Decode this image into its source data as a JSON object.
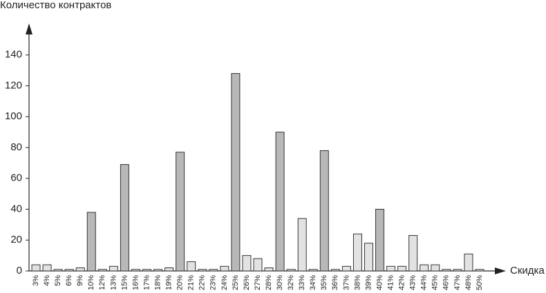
{
  "chart_data": {
    "type": "bar",
    "y_label": "Количество контрактов",
    "x_label": "Скидка",
    "categories": [
      "3%",
      "4%",
      "5%",
      "6%",
      "9%",
      "10%",
      "12%",
      "13%",
      "15%",
      "16%",
      "17%",
      "18%",
      "19%",
      "20%",
      "21%",
      "22%",
      "23%",
      "24%",
      "25%",
      "26%",
      "27%",
      "28%",
      "30%",
      "32%",
      "33%",
      "34%",
      "35%",
      "36%",
      "37%",
      "38%",
      "39%",
      "40%",
      "41%",
      "42%",
      "43%",
      "44%",
      "45%",
      "46%",
      "47%",
      "48%",
      "50%"
    ],
    "values": [
      4,
      4,
      1,
      1,
      2,
      38,
      1,
      3,
      69,
      1,
      1,
      1,
      2,
      77,
      6,
      1,
      1,
      3,
      128,
      10,
      8,
      2,
      90,
      1,
      34,
      1,
      78,
      1,
      3,
      24,
      18,
      40,
      3,
      3,
      23,
      4,
      4,
      1,
      1,
      11,
      1
    ],
    "colors": [
      "#e2e2e2",
      "#e2e2e2",
      "#e2e2e2",
      "#e2e2e2",
      "#e2e2e2",
      "#b8b8b8",
      "#e2e2e2",
      "#e2e2e2",
      "#b8b8b8",
      "#e2e2e2",
      "#e2e2e2",
      "#e2e2e2",
      "#e2e2e2",
      "#b8b8b8",
      "#e2e2e2",
      "#e2e2e2",
      "#e2e2e2",
      "#e2e2e2",
      "#b8b8b8",
      "#e2e2e2",
      "#e2e2e2",
      "#e2e2e2",
      "#b8b8b8",
      "#e2e2e2",
      "#e2e2e2",
      "#e2e2e2",
      "#b8b8b8",
      "#e2e2e2",
      "#e2e2e2",
      "#e2e2e2",
      "#e2e2e2",
      "#b8b8b8",
      "#e2e2e2",
      "#e2e2e2",
      "#e2e2e2",
      "#e2e2e2",
      "#e2e2e2",
      "#e2e2e2",
      "#e2e2e2",
      "#e2e2e2",
      "#e2e2e2"
    ],
    "ylim": [
      0,
      160
    ],
    "yticks": [
      0,
      20,
      40,
      60,
      80,
      100,
      120,
      140
    ],
    "grid": false
  }
}
